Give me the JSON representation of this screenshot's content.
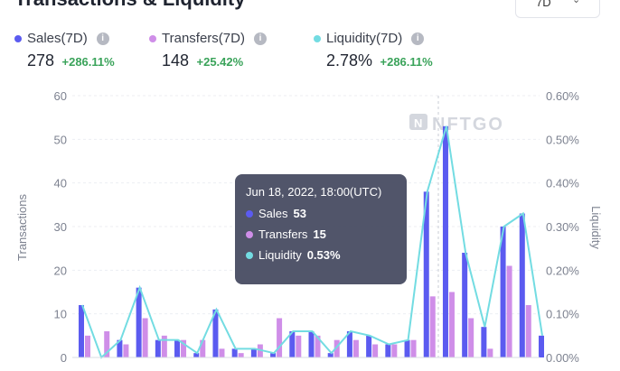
{
  "header": {
    "title": "Transactions & Liquidity",
    "range_label": "7D",
    "range_chevron_icon": "chevron-down-icon"
  },
  "stats": [
    {
      "name": "Sales(7D)",
      "value": "278",
      "change": "+286.11%",
      "color": "#5b5bf0"
    },
    {
      "name": "Transfers(7D)",
      "value": "148",
      "change": "+25.42%",
      "color": "#cf8ee8"
    },
    {
      "name": "Liquidity(7D)",
      "value": "2.78%",
      "change": "+286.11%",
      "color": "#73dce2"
    }
  ],
  "watermark": "NFTGO",
  "tooltip": {
    "title": "Jun 18, 2022, 18:00(UTC)",
    "rows": [
      {
        "label": "Sales",
        "value": "53",
        "color": "#5b5bf0"
      },
      {
        "label": "Transfers",
        "value": "15",
        "color": "#cf8ee8"
      },
      {
        "label": "Liquidity",
        "value": "0.53%",
        "color": "#73dce2"
      }
    ]
  },
  "chart_data": {
    "type": "bar",
    "ylabel": "Transactions",
    "y2label": "Liquidity",
    "ylim": [
      0,
      60
    ],
    "y2lim": [
      0,
      0.6
    ],
    "yticks": [
      "0",
      "10",
      "20",
      "30",
      "40",
      "50",
      "60"
    ],
    "y2ticks": [
      "0.00%",
      "0.10%",
      "0.20%",
      "0.30%",
      "0.40%",
      "0.50%",
      "0.60%"
    ],
    "grid": true,
    "series": [
      {
        "name": "Sales",
        "type": "bar",
        "color": "#5b5bf0",
        "values": [
          12,
          0,
          4,
          16,
          4,
          4,
          1,
          11,
          2,
          2,
          1,
          6,
          6,
          1,
          6,
          5,
          3,
          4,
          38,
          53,
          24,
          7,
          30,
          33,
          5
        ]
      },
      {
        "name": "Transfers",
        "type": "bar",
        "color": "#cf8ee8",
        "values": [
          5,
          6,
          3,
          9,
          5,
          4,
          4,
          2,
          1,
          3,
          9,
          5,
          5,
          4,
          4,
          3,
          3,
          4,
          14,
          15,
          9,
          2,
          21,
          12,
          0
        ]
      },
      {
        "name": "Liquidity",
        "type": "line",
        "color": "#73dce2",
        "values": [
          0.12,
          0,
          0.04,
          0.16,
          0.04,
          0.04,
          0.01,
          0.11,
          0.02,
          0.02,
          0.01,
          0.06,
          0.06,
          0.01,
          0.06,
          0.05,
          0.03,
          0.04,
          0.38,
          0.53,
          0.24,
          0.07,
          0.3,
          0.33,
          0.05
        ]
      }
    ]
  }
}
